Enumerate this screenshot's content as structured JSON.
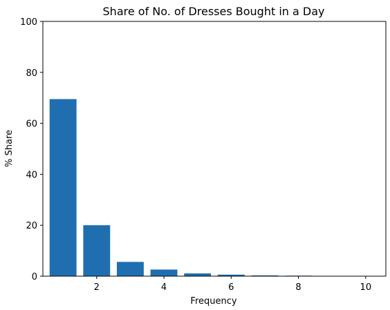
{
  "chart_data": {
    "type": "bar",
    "title": "Share of No. of Dresses Bought in a Day",
    "xlabel": "Frequency",
    "ylabel": "% Share",
    "x": [
      1,
      2,
      3,
      4,
      5,
      6,
      7,
      8,
      9,
      10
    ],
    "values": [
      69.5,
      20.0,
      5.6,
      2.6,
      1.1,
      0.6,
      0.3,
      0.2,
      0.1,
      0.05
    ],
    "xlim": [
      0.4,
      10.6
    ],
    "ylim": [
      0,
      100
    ],
    "xticks": [
      2,
      4,
      6,
      8,
      10
    ],
    "yticks": [
      0,
      20,
      40,
      60,
      80,
      100
    ],
    "bar_color": "#1f6fb0",
    "grid": false,
    "legend": "none"
  }
}
